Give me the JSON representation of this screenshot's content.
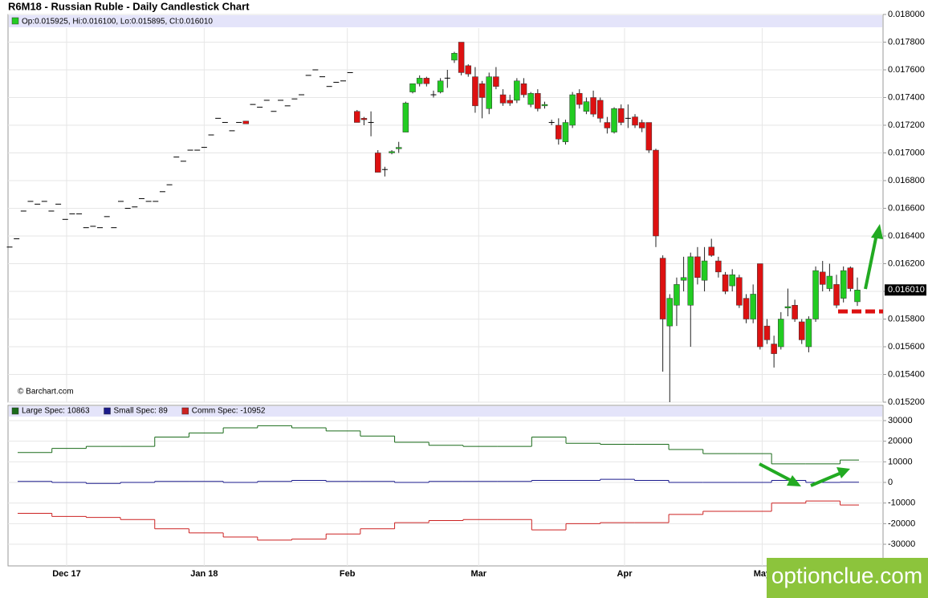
{
  "chart_data": [
    {
      "type": "candlestick",
      "title": "R6M18 - Russian Ruble - Daily Candlestick Chart",
      "header": "Op:0.015925, Hi:0.016100, Lo:0.015895, Cl:0.016010",
      "credit": "© Barchart.com",
      "last_label": "0.016010",
      "up_color": "#22cc22",
      "down_color": "#dd1111",
      "flat_color": "#000000",
      "ylim": [
        0.0152,
        0.018
      ],
      "yticks": [
        {
          "value": 0.018,
          "label": "0.018000"
        },
        {
          "value": 0.0178,
          "label": "0.017800"
        },
        {
          "value": 0.0176,
          "label": "0.017600"
        },
        {
          "value": 0.0174,
          "label": "0.017400"
        },
        {
          "value": 0.0172,
          "label": "0.017200"
        },
        {
          "value": 0.017,
          "label": "0.017000"
        },
        {
          "value": 0.0168,
          "label": "0.016800"
        },
        {
          "value": 0.0166,
          "label": "0.016600"
        },
        {
          "value": 0.0164,
          "label": "0.016400"
        },
        {
          "value": 0.0162,
          "label": "0.016200"
        },
        {
          "value": 0.016,
          "label": "0.016000"
        },
        {
          "value": 0.0158,
          "label": "0.015800"
        },
        {
          "value": 0.0156,
          "label": "0.015600"
        },
        {
          "value": 0.0154,
          "label": "0.015400"
        },
        {
          "value": 0.0152,
          "label": "0.015200"
        }
      ],
      "xticks": [
        {
          "value": 8.2,
          "label": "Dec 17"
        },
        {
          "value": 28,
          "label": "Jan 18"
        },
        {
          "value": 48.6,
          "label": "Feb"
        },
        {
          "value": 67.5,
          "label": "Mar"
        },
        {
          "value": 88.5,
          "label": "Apr"
        },
        {
          "value": 108.3,
          "label": "May"
        }
      ],
      "ohlc": [
        [
          0.01632,
          0.01632,
          0.01632,
          0.01632
        ],
        [
          0.01638,
          0.01638,
          0.01638,
          0.01638
        ],
        [
          0.01658,
          0.01658,
          0.01658,
          0.01658
        ],
        [
          0.01665,
          0.01665,
          0.01665,
          0.01665
        ],
        [
          0.01663,
          0.01663,
          0.01663,
          0.01663
        ],
        [
          0.01665,
          0.01665,
          0.01665,
          0.01665
        ],
        [
          0.01658,
          0.01658,
          0.01658,
          0.01658
        ],
        [
          0.01663,
          0.01663,
          0.01663,
          0.01663
        ],
        [
          0.01652,
          0.01652,
          0.01652,
          0.01652
        ],
        [
          0.01656,
          0.01656,
          0.01656,
          0.01656
        ],
        [
          0.01656,
          0.01656,
          0.01656,
          0.01656
        ],
        [
          0.01646,
          0.01646,
          0.01646,
          0.01646
        ],
        [
          0.01647,
          0.01647,
          0.01647,
          0.01647
        ],
        [
          0.01646,
          0.01646,
          0.01646,
          0.01646
        ],
        [
          0.01654,
          0.01654,
          0.01654,
          0.01654
        ],
        [
          0.01646,
          0.01646,
          0.01646,
          0.01646
        ],
        [
          0.01665,
          0.01665,
          0.01665,
          0.01665
        ],
        [
          0.0166,
          0.0166,
          0.0166,
          0.0166
        ],
        [
          0.01661,
          0.01661,
          0.01661,
          0.01661
        ],
        [
          0.01667,
          0.01667,
          0.01667,
          0.01667
        ],
        [
          0.01665,
          0.01665,
          0.01665,
          0.01665
        ],
        [
          0.01665,
          0.01665,
          0.01665,
          0.01665
        ],
        [
          0.01672,
          0.01672,
          0.01672,
          0.01672
        ],
        [
          0.01677,
          0.01677,
          0.01677,
          0.01677
        ],
        [
          0.01697,
          0.01697,
          0.01697,
          0.01697
        ],
        [
          0.01694,
          0.01694,
          0.01694,
          0.01694
        ],
        [
          0.01702,
          0.01702,
          0.01702,
          0.01702
        ],
        [
          0.01702,
          0.01702,
          0.01702,
          0.01702
        ],
        [
          0.01704,
          0.01704,
          0.01704,
          0.01704
        ],
        [
          0.01713,
          0.01713,
          0.01713,
          0.01713
        ],
        [
          0.01725,
          0.01725,
          0.01725,
          0.01725
        ],
        [
          0.01722,
          0.01722,
          0.01722,
          0.01722
        ],
        [
          0.01716,
          0.01716,
          0.01716,
          0.01716
        ],
        [
          0.01722,
          0.01722,
          0.01722,
          0.01722
        ],
        [
          0.01723,
          0.01723,
          0.01721,
          0.01721
        ],
        [
          0.01735,
          0.01735,
          0.01735,
          0.01735
        ],
        [
          0.01733,
          0.01733,
          0.01733,
          0.01733
        ],
        [
          0.01738,
          0.01738,
          0.01738,
          0.01738
        ],
        [
          0.0173,
          0.0173,
          0.0173,
          0.0173
        ],
        [
          0.01738,
          0.01738,
          0.01738,
          0.01738
        ],
        [
          0.01734,
          0.01734,
          0.01734,
          0.01734
        ],
        [
          0.01739,
          0.01739,
          0.01739,
          0.01739
        ],
        [
          0.01742,
          0.01742,
          0.01742,
          0.01742
        ],
        [
          0.01756,
          0.01756,
          0.01756,
          0.01756
        ],
        [
          0.0176,
          0.0176,
          0.0176,
          0.0176
        ],
        [
          0.01755,
          0.01755,
          0.01755,
          0.01755
        ],
        [
          0.01748,
          0.01748,
          0.01748,
          0.01748
        ],
        [
          0.01751,
          0.01751,
          0.01751,
          0.01751
        ],
        [
          0.01752,
          0.01752,
          0.01752,
          0.01752
        ],
        [
          0.01758,
          0.01758,
          0.01758,
          0.01758
        ],
        [
          0.0173,
          0.01731,
          0.01722,
          0.01722
        ],
        [
          0.01725,
          0.01726,
          0.0172,
          0.01724
        ],
        [
          0.01722,
          0.0173,
          0.01712,
          0.01722
        ],
        [
          0.017,
          0.01702,
          0.01686,
          0.01686
        ],
        [
          0.01688,
          0.0169,
          0.01683,
          0.01688
        ],
        [
          0.017,
          0.01702,
          0.01699,
          0.01701
        ],
        [
          0.01703,
          0.01708,
          0.017,
          0.01704
        ],
        [
          0.01715,
          0.01737,
          0.01715,
          0.01736
        ],
        [
          0.01744,
          0.0175,
          0.01743,
          0.0175
        ],
        [
          0.0175,
          0.01756,
          0.01748,
          0.01754
        ],
        [
          0.01754,
          0.01755,
          0.01748,
          0.0175
        ],
        [
          0.01742,
          0.01745,
          0.0174,
          0.01742
        ],
        [
          0.01744,
          0.01754,
          0.01743,
          0.01752
        ],
        [
          0.01754,
          0.0176,
          0.01747,
          0.01754
        ],
        [
          0.01767,
          0.01773,
          0.01765,
          0.01772
        ],
        [
          0.0178,
          0.0178,
          0.01756,
          0.01758
        ],
        [
          0.01763,
          0.01764,
          0.01755,
          0.01757
        ],
        [
          0.01755,
          0.01762,
          0.01729,
          0.01734
        ],
        [
          0.0175,
          0.01752,
          0.01725,
          0.0174
        ],
        [
          0.01732,
          0.01758,
          0.01728,
          0.01755
        ],
        [
          0.01755,
          0.01762,
          0.01746,
          0.01748
        ],
        [
          0.01742,
          0.01746,
          0.01734,
          0.01736
        ],
        [
          0.01738,
          0.01742,
          0.01734,
          0.01736
        ],
        [
          0.01738,
          0.01754,
          0.01736,
          0.01752
        ],
        [
          0.0175,
          0.01754,
          0.0174,
          0.01742
        ],
        [
          0.01735,
          0.01744,
          0.01733,
          0.01743
        ],
        [
          0.01743,
          0.01746,
          0.0173,
          0.01732
        ],
        [
          0.01734,
          0.01737,
          0.01732,
          0.01735
        ],
        [
          0.01722,
          0.01724,
          0.0172,
          0.01722
        ],
        [
          0.0172,
          0.01725,
          0.01706,
          0.0171
        ],
        [
          0.01708,
          0.01724,
          0.01706,
          0.01722
        ],
        [
          0.0172,
          0.01744,
          0.01718,
          0.01742
        ],
        [
          0.01743,
          0.01746,
          0.01732,
          0.01735
        ],
        [
          0.0173,
          0.0174,
          0.01728,
          0.01737
        ],
        [
          0.0174,
          0.01745,
          0.01726,
          0.01728
        ],
        [
          0.01738,
          0.0174,
          0.01722,
          0.01725
        ],
        [
          0.01722,
          0.01726,
          0.01714,
          0.01718
        ],
        [
          0.01715,
          0.01733,
          0.01714,
          0.01732
        ],
        [
          0.01732,
          0.01735,
          0.0172,
          0.01722
        ],
        [
          0.01725,
          0.01735,
          0.01718,
          0.01725
        ],
        [
          0.01726,
          0.01728,
          0.01718,
          0.0172
        ],
        [
          0.01722,
          0.01724,
          0.01715,
          0.01718
        ],
        [
          0.01722,
          0.01722,
          0.017,
          0.01702
        ],
        [
          0.01702,
          0.01703,
          0.01632,
          0.0164
        ],
        [
          0.01624,
          0.01626,
          0.01542,
          0.0158
        ],
        [
          0.01575,
          0.01598,
          0.0152,
          0.01595
        ],
        [
          0.0159,
          0.0161,
          0.01575,
          0.01605
        ],
        [
          0.01608,
          0.01625,
          0.016,
          0.0161
        ],
        [
          0.0159,
          0.01628,
          0.0156,
          0.01625
        ],
        [
          0.01625,
          0.01632,
          0.01605,
          0.0161
        ],
        [
          0.01608,
          0.01632,
          0.016,
          0.01622
        ],
        [
          0.01632,
          0.01638,
          0.01625,
          0.01626
        ],
        [
          0.01622,
          0.01625,
          0.0161,
          0.01614
        ],
        [
          0.01612,
          0.01614,
          0.01598,
          0.016
        ],
        [
          0.01604,
          0.01616,
          0.016,
          0.01612
        ],
        [
          0.0161,
          0.01612,
          0.01588,
          0.0159
        ],
        [
          0.01595,
          0.01598,
          0.01577,
          0.0158
        ],
        [
          0.0158,
          0.01605,
          0.01577,
          0.01598
        ],
        [
          0.0162,
          0.0162,
          0.01558,
          0.0156
        ],
        [
          0.01575,
          0.0158,
          0.01562,
          0.01565
        ],
        [
          0.01562,
          0.01568,
          0.01545,
          0.01555
        ],
        [
          0.0156,
          0.01585,
          0.01558,
          0.0158
        ],
        [
          0.01588,
          0.01602,
          0.01582,
          0.01589
        ],
        [
          0.0159,
          0.01594,
          0.01578,
          0.0158
        ],
        [
          0.01578,
          0.0158,
          0.01562,
          0.01565
        ],
        [
          0.0156,
          0.01582,
          0.01556,
          0.0158
        ],
        [
          0.0158,
          0.01618,
          0.01578,
          0.01615
        ],
        [
          0.01614,
          0.01622,
          0.016,
          0.01605
        ],
        [
          0.01602,
          0.0162,
          0.016,
          0.01611
        ],
        [
          0.01605,
          0.01612,
          0.01588,
          0.0159
        ],
        [
          0.01595,
          0.01618,
          0.01592,
          0.01615
        ],
        [
          0.01617,
          0.01618,
          0.016,
          0.01602
        ],
        [
          0.015925,
          0.0161,
          0.015895,
          0.01601
        ]
      ]
    },
    {
      "type": "step",
      "ylim": [
        -40500,
        37400
      ],
      "yticks": [
        30000,
        20000,
        10000,
        0,
        -10000,
        -20000,
        -30000
      ],
      "series": [
        {
          "name": "Large Spec",
          "legend_label": "Large Spec: 10863",
          "color": "#1a6b1a",
          "values": [
            14500,
            16500,
            17500,
            17500,
            22000,
            24000,
            26500,
            27500,
            26500,
            25000,
            22500,
            19500,
            18000,
            17500,
            17500,
            22000,
            19000,
            18500,
            18500,
            16000,
            14000,
            14000,
            9000,
            9000,
            10863
          ]
        },
        {
          "name": "Small Spec",
          "legend_label": "Small Spec: 89",
          "color": "#1a1a8c",
          "values": [
            500,
            0,
            -500,
            0,
            500,
            500,
            0,
            500,
            1000,
            500,
            500,
            0,
            500,
            500,
            500,
            1000,
            1000,
            1500,
            1000,
            0,
            0,
            0,
            1000,
            0,
            89
          ]
        },
        {
          "name": "Comm Spec",
          "legend_label": "Comm Spec: -10952",
          "color": "#cc2222",
          "values": [
            -15000,
            -16500,
            -17000,
            -18000,
            -22500,
            -24500,
            -26500,
            -28000,
            -27500,
            -25000,
            -22500,
            -19500,
            -18500,
            -18000,
            -18000,
            -23000,
            -20000,
            -19500,
            -19500,
            -15500,
            -14000,
            -14000,
            -10000,
            -9000,
            -10952
          ]
        }
      ]
    }
  ],
  "watermark": "optionclue.com"
}
